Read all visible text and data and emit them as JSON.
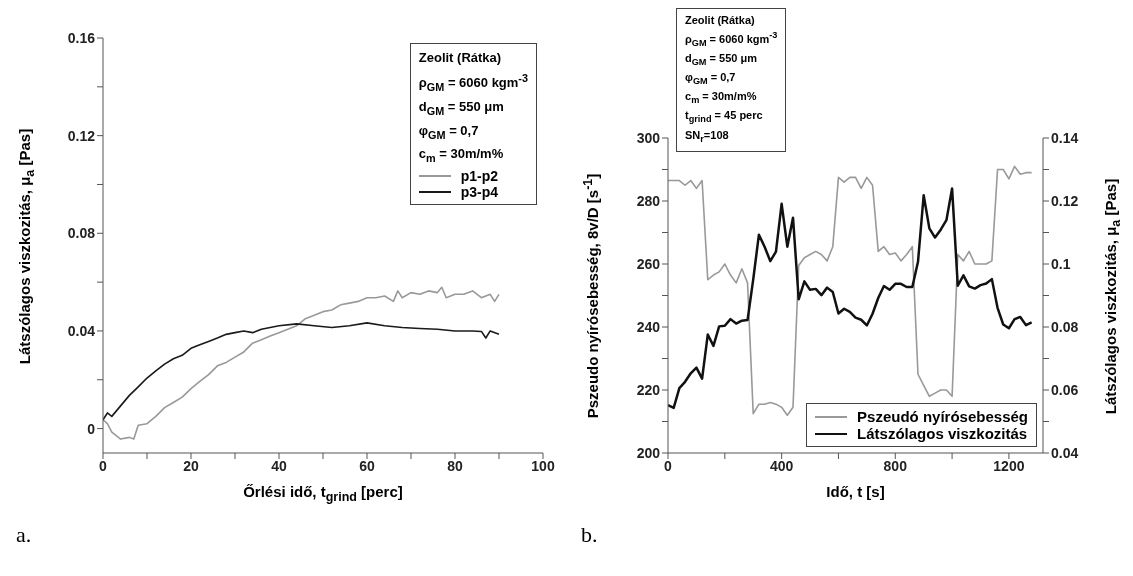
{
  "chart_data": [
    {
      "type": "line",
      "xlabel": "Őrlési idő, t$_{grind}$ [perc]",
      "ylabel": "Látszólagos viszkozitás, μ$_{a}$ [Pas]",
      "xlim": [
        0,
        100
      ],
      "xticks": [
        0,
        {
          "value": 10,
          "label": null
        },
        20,
        {
          "value": 30,
          "label": null
        },
        40,
        {
          "value": 50,
          "label": null
        },
        60,
        {
          "value": 70,
          "label": null
        },
        80,
        {
          "value": 90,
          "label": null
        },
        100
      ],
      "ylim": [
        -0.01,
        0.16
      ],
      "yticks": [
        0,
        {
          "value": 0.02,
          "label": null
        },
        0.04,
        {
          "value": 0.06,
          "label": null
        },
        0.08,
        {
          "value": 0.1,
          "label": null
        },
        0.12,
        {
          "value": 0.14,
          "label": null
        },
        0.16
      ],
      "legend": "top right",
      "grid": false,
      "marker": "none",
      "line_style": "solid",
      "annotations": [
        "Zeolit (Rátka)",
        "ρ$_{GM}$ = 6060 kgm$^{-3}$",
        "d$_{GM}$ = 550 μm",
        "φ$_{GM}$ = 0,7",
        "c$_{m}$ = 30m/m%",
        "a."
      ],
      "series": [
        {
          "name": "p1-p2",
          "color": "#999999",
          "x": [
            0,
            1,
            2,
            4,
            6,
            7,
            8,
            10,
            12,
            14,
            16,
            18,
            20,
            22,
            24,
            26,
            28,
            30,
            32,
            34,
            36,
            38,
            40,
            42,
            44,
            46,
            48,
            50,
            52,
            54,
            56,
            58,
            60,
            62,
            64,
            66,
            67,
            68,
            70,
            72,
            74,
            76,
            77,
            78,
            80,
            82,
            84,
            86,
            88,
            89,
            90
          ],
          "values": [
            0.0036,
            0.002,
            -0.0014,
            -0.0043,
            -0.0036,
            -0.0043,
            0.0014,
            0.002,
            0.005,
            0.0086,
            0.0107,
            0.0129,
            0.0164,
            0.0193,
            0.0221,
            0.0257,
            0.0271,
            0.0293,
            0.0314,
            0.035,
            0.0364,
            0.0379,
            0.0393,
            0.0407,
            0.0421,
            0.045,
            0.0464,
            0.0479,
            0.0486,
            0.0507,
            0.0514,
            0.0521,
            0.0536,
            0.0536,
            0.0543,
            0.0521,
            0.0564,
            0.0536,
            0.0557,
            0.055,
            0.0564,
            0.0557,
            0.0579,
            0.0536,
            0.055,
            0.055,
            0.0564,
            0.0536,
            0.055,
            0.0521,
            0.055
          ]
        },
        {
          "name": "p3-p4",
          "color": "#1a1a1a",
          "x": [
            0,
            1,
            2,
            4,
            6,
            8,
            10,
            12,
            14,
            16,
            18,
            20,
            22,
            24,
            26,
            28,
            30,
            32,
            34,
            36,
            38,
            40,
            44,
            48,
            52,
            56,
            60,
            64,
            68,
            72,
            76,
            80,
            84,
            86,
            87,
            88,
            90
          ],
          "values": [
            0.0036,
            0.0064,
            0.005,
            0.0093,
            0.0136,
            0.0171,
            0.0207,
            0.0236,
            0.0264,
            0.0286,
            0.03,
            0.0329,
            0.0343,
            0.0357,
            0.0371,
            0.0386,
            0.0393,
            0.04,
            0.0393,
            0.0407,
            0.0414,
            0.0421,
            0.0429,
            0.0421,
            0.0414,
            0.0421,
            0.0433,
            0.0421,
            0.0414,
            0.041,
            0.0407,
            0.04,
            0.04,
            0.0398,
            0.0371,
            0.04,
            0.0386
          ]
        }
      ]
    },
    {
      "type": "line",
      "xlabel": "Idő, t [s]",
      "ylabel": "Pszeudo nyírósebesség, 8v/D [s$^{-1}$]",
      "y2label": "Látszólagos viszkozitás, μ$_{a}$ [Pas]",
      "xlim": [
        0,
        1320
      ],
      "xticks": [
        0,
        {
          "value": 200,
          "label": null
        },
        400,
        {
          "value": 600,
          "label": null
        },
        800,
        {
          "value": 1000,
          "label": null
        },
        1200
      ],
      "ylim": [
        200,
        300
      ],
      "yticks": [
        200,
        {
          "value": 210,
          "label": null
        },
        220,
        {
          "value": 230,
          "label": null
        },
        240,
        {
          "value": 250,
          "label": null
        },
        260,
        {
          "value": 270,
          "label": null
        },
        280,
        {
          "value": 290,
          "label": null
        },
        300
      ],
      "y2lim": [
        0.04,
        0.14
      ],
      "y2ticks": [
        0.04,
        {
          "value": 0.05,
          "label": null
        },
        0.06,
        {
          "value": 0.07,
          "label": null
        },
        0.08,
        {
          "value": 0.09,
          "label": null
        },
        0.1,
        {
          "value": 0.11,
          "label": null
        },
        0.12,
        {
          "value": 0.13,
          "label": null
        },
        0.14
      ],
      "legend": "bottom right",
      "grid": false,
      "marker": "none",
      "line_style": "solid",
      "annotations": [
        "Zeolit (Rátka)",
        "ρ$_{GM}$ = 6060 kgm$^{-3}$",
        "d$_{GM}$ = 550 μm",
        "φ$_{GM}$ = 0,7",
        "c$_{m}$ = 30m/m%",
        "t$_{grind}$ = 45 perc",
        "SN$_{r}$=108",
        "b."
      ],
      "x": [
        0,
        20,
        40,
        60,
        80,
        100,
        120,
        140,
        160,
        180,
        200,
        220,
        240,
        260,
        280,
        300,
        320,
        340,
        360,
        380,
        400,
        420,
        440,
        460,
        480,
        500,
        520,
        540,
        560,
        580,
        600,
        620,
        640,
        660,
        680,
        700,
        720,
        740,
        760,
        780,
        800,
        820,
        840,
        860,
        880,
        900,
        920,
        940,
        960,
        980,
        1000,
        1020,
        1040,
        1060,
        1080,
        1100,
        1120,
        1140,
        1160,
        1180,
        1200,
        1220,
        1240,
        1260,
        1280
      ],
      "series": [
        {
          "name": "Pszeudó nyírósebesség",
          "color": "#999999",
          "values": [
            286.5,
            286.5,
            286.5,
            285,
            286.5,
            284,
            286.5,
            255,
            256.5,
            257.5,
            260,
            256.5,
            254,
            258.5,
            254,
            212.5,
            215.5,
            215.5,
            216,
            215.5,
            214.5,
            212,
            214.5,
            259.5,
            262,
            263,
            264,
            263,
            261,
            265.5,
            287.5,
            286,
            287.5,
            287.5,
            284,
            287.5,
            285,
            264,
            265.5,
            263,
            263.5,
            261,
            263,
            265.5,
            225,
            221.5,
            218,
            219,
            220,
            220,
            218,
            263,
            261,
            264,
            260,
            260,
            260,
            261,
            290,
            290,
            287,
            291,
            288.5,
            289,
            289
          ]
        },
        {
          "name": "Látszólagos viszkozitás",
          "color": "#111111",
          "axis": "y2",
          "values": [
            0.0552,
            0.0543,
            0.0606,
            0.0626,
            0.0653,
            0.0671,
            0.0636,
            0.0776,
            0.074,
            0.0802,
            0.0804,
            0.0825,
            0.0811,
            0.082,
            0.0822,
            0.0951,
            0.1093,
            0.1055,
            0.1009,
            0.1039,
            0.1191,
            0.1055,
            0.1147,
            0.0888,
            0.0945,
            0.0918,
            0.0921,
            0.0901,
            0.0925,
            0.0911,
            0.0843,
            0.0858,
            0.0848,
            0.083,
            0.0823,
            0.0805,
            0.0842,
            0.0892,
            0.093,
            0.0918,
            0.0937,
            0.0937,
            0.0927,
            0.0927,
            0.1007,
            0.1218,
            0.1113,
            0.1084,
            0.1109,
            0.1139,
            0.124,
            0.0931,
            0.0964,
            0.0929,
            0.0922,
            0.0933,
            0.0938,
            0.0952,
            0.0861,
            0.0808,
            0.0796,
            0.0825,
            0.0832,
            0.0806,
            0.0815
          ]
        }
      ]
    }
  ]
}
